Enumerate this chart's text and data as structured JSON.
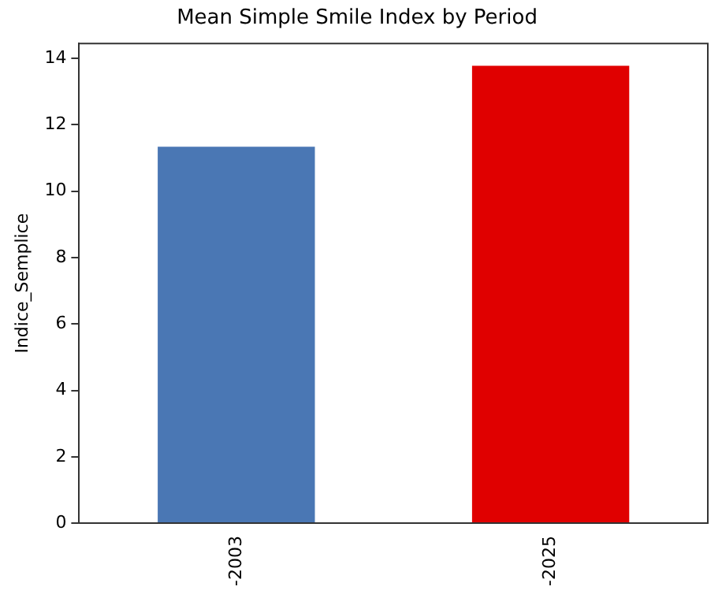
{
  "chart_data": {
    "type": "bar",
    "title": "Mean Simple Smile Index by Period",
    "ylabel": "Indice_Semplice",
    "categories": [
      "-2003",
      "-2025"
    ],
    "values": [
      11.34,
      13.78
    ],
    "colors": [
      "#4a77b4",
      "#e00000"
    ],
    "ylim": [
      0,
      14.45
    ],
    "yticks": [
      0,
      2,
      4,
      6,
      8,
      10,
      12,
      14
    ],
    "grid": false,
    "legend": false
  }
}
